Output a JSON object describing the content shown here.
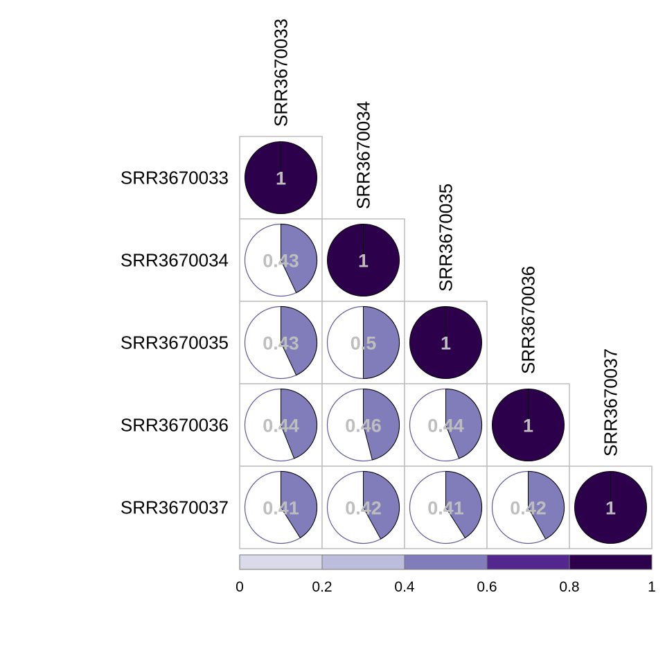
{
  "chart_data": {
    "type": "heatmap",
    "style": "correlation pie matrix, lower triangle",
    "labels": [
      "SRR3670033",
      "SRR3670034",
      "SRR3670035",
      "SRR3670036",
      "SRR3670037"
    ],
    "matrix": [
      [
        1,
        null,
        null,
        null,
        null
      ],
      [
        0.43,
        1,
        null,
        null,
        null
      ],
      [
        0.43,
        0.5,
        1,
        null,
        null
      ],
      [
        0.44,
        0.46,
        0.44,
        1,
        null
      ],
      [
        0.41,
        0.42,
        0.41,
        0.42,
        1
      ]
    ],
    "display_values": [
      [
        "1",
        "",
        "",
        "",
        ""
      ],
      [
        "0.43",
        "1",
        "",
        "",
        ""
      ],
      [
        "0.43",
        "0.5",
        "1",
        "",
        ""
      ],
      [
        "0.44",
        "0.46",
        "0.44",
        "1",
        ""
      ],
      [
        "0.41",
        "0.42",
        "0.41",
        "0.42",
        "1"
      ]
    ],
    "colorbar": {
      "range": [
        0,
        1
      ],
      "breaks": [
        0,
        0.2,
        0.4,
        0.6,
        0.8,
        1
      ],
      "tick_labels": [
        "0",
        "0.2",
        "0.4",
        "0.6",
        "0.8",
        "1"
      ],
      "colors": [
        "#dadaeb",
        "#bcbddc",
        "#807dba",
        "#54278f",
        "#2d004b"
      ]
    },
    "value_label_color": "#bebebe",
    "cell_border_color": "#bebebe",
    "pie_outline_color": "#000000",
    "empty_pie_outline_color": "#5e5a9a"
  }
}
